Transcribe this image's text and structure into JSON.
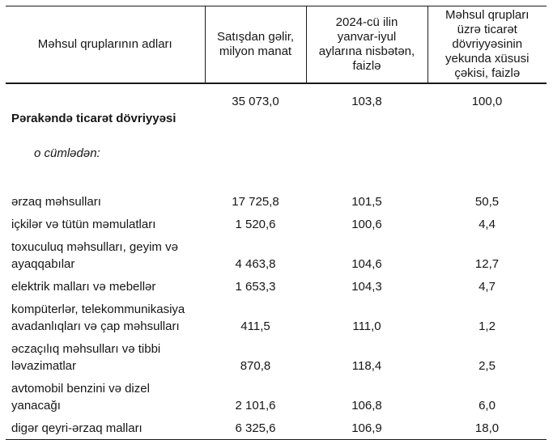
{
  "table": {
    "headers": {
      "product_group": "Məhsul qruplarının adları",
      "revenue": "Satışdan gəlir,\nmilyon manat",
      "percent_vs_2024": "2024-cü ilin\nyanvar-iyul\naylarına nisbətən,\nfaizlə",
      "share_in_total": "Məhsul qrupları\nüzrə ticarət\ndövriyyəsinin\nyekunda xüsusi\nçəkisi, faizlə"
    },
    "total_row": {
      "name": "Pərakəndə ticarət dövriyyəsi",
      "subnote": "o cümlədən:",
      "revenue": "35 073,0",
      "percent_vs_2024": "103,8",
      "share_in_total": "100,0"
    },
    "rows": [
      {
        "name": "ərzaq məhsulları",
        "revenue": "17 725,8",
        "percent_vs_2024": "101,5",
        "share_in_total": "50,5"
      },
      {
        "name": "içkilər və tütün məmulatları",
        "revenue": "1 520,6",
        "percent_vs_2024": "100,6",
        "share_in_total": "4,4"
      },
      {
        "name": "toxuculuq məhsulları, geyim və\nayaqqabılar",
        "revenue": "4 463,8",
        "percent_vs_2024": "104,6",
        "share_in_total": "12,7"
      },
      {
        "name": "elektrik malları və mebellər",
        "revenue": "1 653,3",
        "percent_vs_2024": "104,3",
        "share_in_total": "4,7"
      },
      {
        "name": "kompüterlər, telekommunikasiya\navadanlıqları və çap məhsulları",
        "revenue": "411,5",
        "percent_vs_2024": "111,0",
        "share_in_total": "1,2"
      },
      {
        "name": "əczaçılıq məhsulları və tibbi\nləvazimatlar",
        "revenue": "870,8",
        "percent_vs_2024": "118,4",
        "share_in_total": "2,5"
      },
      {
        "name": "avtomobil benzini və dizel\nyanacağı",
        "revenue": "2 101,6",
        "percent_vs_2024": "106,8",
        "share_in_total": "6,0"
      },
      {
        "name": "digər qeyri-ərzaq malları",
        "revenue": "6 325,6",
        "percent_vs_2024": "106,9",
        "share_in_total": "18,0"
      }
    ]
  }
}
